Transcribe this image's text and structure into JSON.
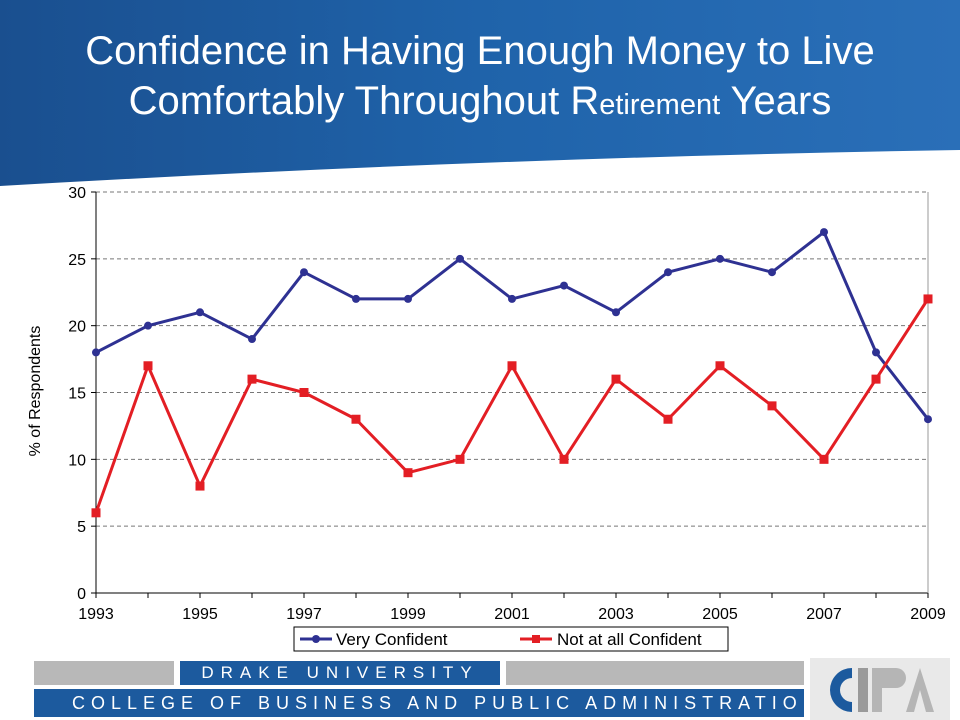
{
  "slide": {
    "title_part1": "Confidence in Having Enough Money to Live",
    "title_part2a": "Comfortably Throughout R",
    "title_part2b": "etirement",
    "title_part2c": " Years"
  },
  "footer": {
    "university": "DRAKE UNIVERSITY",
    "college": "COLLEGE OF BUSINESS AND PUBLIC ADMINISTRATION",
    "logo_text": "CBPA"
  },
  "colors": {
    "header_blue": "#1c5a9e",
    "series_very": "#2e3192",
    "series_not": "#e31e24"
  },
  "chart_data": {
    "type": "line",
    "title": "",
    "xlabel": "",
    "ylabel": "% of Respondents",
    "x": [
      1993,
      1994,
      1995,
      1996,
      1997,
      1998,
      1999,
      2000,
      2001,
      2002,
      2003,
      2004,
      2005,
      2006,
      2007,
      2008,
      2009
    ],
    "xticks": [
      "1993",
      "1995",
      "1997",
      "1999",
      "2001",
      "2003",
      "2005",
      "2007",
      "2009"
    ],
    "yticks": [
      "0",
      "5",
      "10",
      "15",
      "20",
      "25",
      "30"
    ],
    "ylim": [
      0,
      30
    ],
    "grid": "horizontal dashed",
    "legend": "bottom",
    "series": [
      {
        "name": "Very Confident",
        "values": [
          18,
          20,
          21,
          19,
          24,
          22,
          22,
          25,
          22,
          23,
          21,
          24,
          25,
          24,
          27,
          18,
          13
        ]
      },
      {
        "name": "Not at all Confident",
        "values": [
          6,
          17,
          8,
          16,
          15,
          13,
          9,
          10,
          17,
          10,
          16,
          13,
          17,
          14,
          10,
          16,
          22
        ]
      }
    ]
  }
}
